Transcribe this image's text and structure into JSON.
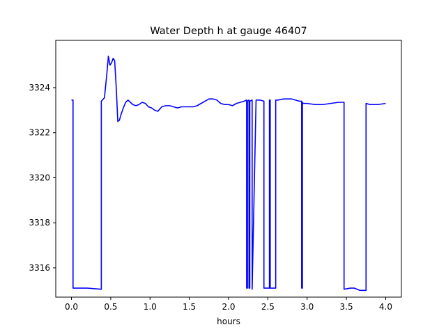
{
  "chart_data": {
    "type": "line",
    "title": "Water Depth h at gauge 46407",
    "xlabel": "hours",
    "ylabel": "",
    "xlim": [
      -0.2,
      4.2
    ],
    "ylim": [
      3314.7,
      3326.1
    ],
    "xticks": [
      0.0,
      0.5,
      1.0,
      1.5,
      2.0,
      2.5,
      3.0,
      3.5,
      4.0
    ],
    "xtick_labels": [
      "0.0",
      "0.5",
      "1.0",
      "1.5",
      "2.0",
      "2.5",
      "3.0",
      "3.5",
      "4.0"
    ],
    "yticks": [
      3316,
      3318,
      3320,
      3322,
      3324
    ],
    "ytick_labels": [
      "3316",
      "3318",
      "3320",
      "3322",
      "3324"
    ],
    "grid": false,
    "line_color": "#0000ff",
    "series": [
      {
        "name": "",
        "x": [
          0.0,
          0.02,
          0.02,
          0.2,
          0.38,
          0.38,
          0.42,
          0.45,
          0.47,
          0.49,
          0.51,
          0.53,
          0.55,
          0.57,
          0.59,
          0.61,
          0.63,
          0.66,
          0.69,
          0.72,
          0.75,
          0.78,
          0.82,
          0.86,
          0.9,
          0.94,
          0.98,
          1.02,
          1.06,
          1.1,
          1.15,
          1.2,
          1.25,
          1.3,
          1.35,
          1.4,
          1.45,
          1.5,
          1.55,
          1.6,
          1.65,
          1.7,
          1.75,
          1.8,
          1.85,
          1.9,
          1.95,
          2.0,
          2.05,
          2.1,
          2.15,
          2.2,
          2.23,
          2.23,
          2.24,
          2.24,
          2.26,
          2.26,
          2.27,
          2.27,
          2.3,
          2.3,
          2.35,
          2.4,
          2.45,
          2.45,
          2.52,
          2.52,
          2.53,
          2.53,
          2.55,
          2.55,
          2.6,
          2.6,
          2.63,
          2.63,
          2.7,
          2.75,
          2.8,
          2.85,
          2.9,
          2.93,
          2.93,
          2.94,
          2.94,
          2.95,
          3.0,
          3.1,
          3.2,
          3.3,
          3.4,
          3.47,
          3.47,
          3.55,
          3.6,
          3.67,
          3.75,
          3.75,
          3.8,
          3.9,
          4.0
        ],
        "y": [
          3323.45,
          3323.45,
          3315.1,
          3315.1,
          3315.05,
          3323.4,
          3323.55,
          3324.6,
          3325.4,
          3325.0,
          3325.1,
          3325.3,
          3325.2,
          3324.0,
          3322.5,
          3322.55,
          3322.8,
          3323.1,
          3323.35,
          3323.45,
          3323.35,
          3323.25,
          3323.2,
          3323.25,
          3323.35,
          3323.3,
          3323.15,
          3323.1,
          3323.0,
          3322.95,
          3323.15,
          3323.2,
          3323.2,
          3323.15,
          3323.1,
          3323.15,
          3323.15,
          3323.15,
          3323.15,
          3323.2,
          3323.3,
          3323.4,
          3323.5,
          3323.5,
          3323.45,
          3323.3,
          3323.25,
          3323.25,
          3323.2,
          3323.3,
          3323.35,
          3323.4,
          3323.45,
          3315.1,
          3315.1,
          3323.4,
          3323.45,
          3315.1,
          3315.1,
          3323.4,
          3323.45,
          3315.05,
          3323.45,
          3323.45,
          3323.4,
          3315.1,
          3315.1,
          3323.45,
          3323.45,
          3315.1,
          3315.1,
          3315.1,
          3315.1,
          3323.45,
          3323.45,
          3323.45,
          3323.5,
          3323.5,
          3323.5,
          3323.45,
          3323.4,
          3323.4,
          3315.1,
          3315.1,
          3323.35,
          3323.3,
          3323.3,
          3323.25,
          3323.25,
          3323.3,
          3323.35,
          3323.35,
          3315.05,
          3315.1,
          3315.1,
          3315.0,
          3315.0,
          3323.3,
          3323.25,
          3323.25,
          3323.3
        ]
      }
    ]
  }
}
